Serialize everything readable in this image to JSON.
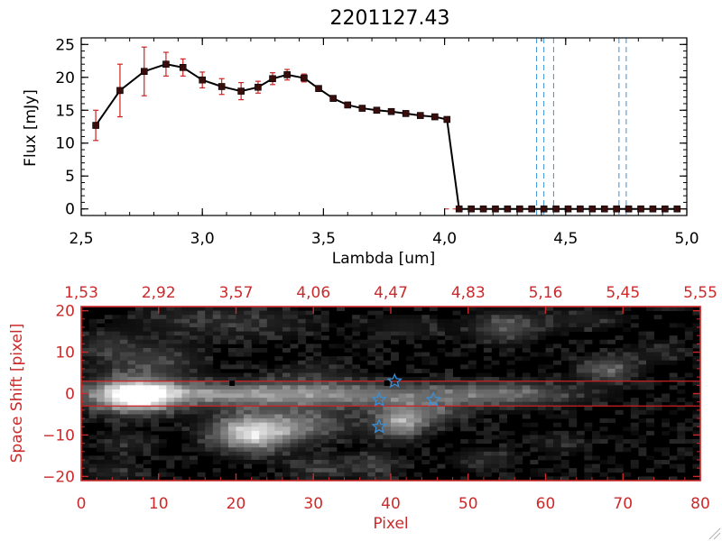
{
  "title": "2201127.43",
  "chart_data": [
    {
      "type": "line",
      "xlabel": "Lambda [um]",
      "ylabel": "Flux [mJy]",
      "xlim": [
        2.5,
        5.0
      ],
      "ylim": [
        -1,
        26
      ],
      "xticks": [
        "2,5",
        "3,0",
        "3,5",
        "4,0",
        "4,5",
        "5,0"
      ],
      "xtick_values": [
        2.5,
        3.0,
        3.5,
        4.0,
        4.5,
        5.0
      ],
      "yticks": [
        "0",
        "5",
        "10",
        "15",
        "20",
        "25"
      ],
      "ytick_values": [
        0,
        5,
        10,
        15,
        20,
        25
      ],
      "series": [
        {
          "color": "#000000",
          "marker_color": "#3a0d0d",
          "errorbar_color": "#cc2222",
          "x": [
            2.56,
            2.66,
            2.76,
            2.85,
            2.92,
            3.0,
            3.08,
            3.16,
            3.23,
            3.29,
            3.35,
            3.42,
            3.48,
            3.54,
            3.6,
            3.66,
            3.72,
            3.78,
            3.84,
            3.9,
            3.96,
            4.01,
            4.06,
            4.11,
            4.16,
            4.21,
            4.26,
            4.31,
            4.36,
            4.41,
            4.46,
            4.51,
            4.56,
            4.61,
            4.66,
            4.71,
            4.76,
            4.81,
            4.86,
            4.91,
            4.96
          ],
          "y": [
            12.7,
            18.0,
            20.9,
            22.0,
            21.5,
            19.6,
            18.6,
            17.9,
            18.5,
            19.8,
            20.4,
            19.9,
            18.3,
            16.8,
            15.8,
            15.3,
            15.0,
            14.8,
            14.5,
            14.2,
            14.0,
            13.6,
            0.0,
            0.0,
            0.0,
            0.0,
            0.0,
            0.0,
            0.0,
            0.0,
            0.0,
            0.0,
            0.0,
            0.0,
            0.0,
            0.0,
            0.0,
            0.0,
            0.0,
            0.0,
            0.0
          ],
          "yerr": [
            2.3,
            4.0,
            3.7,
            1.8,
            1.3,
            1.2,
            1.2,
            1.3,
            0.9,
            0.9,
            0.8,
            0.6,
            0.4,
            0.3,
            0.3,
            0.3,
            0.3,
            0.3,
            0.3,
            0.3,
            0.3,
            0.3,
            0,
            0,
            0,
            0,
            0,
            0,
            0,
            0,
            0,
            0,
            0,
            0,
            0,
            0,
            0,
            0,
            0,
            0,
            0
          ]
        }
      ],
      "vlines": {
        "color": "#3a8fd6",
        "x": [
          4.38,
          4.41,
          4.45,
          4.72,
          4.75
        ]
      },
      "hline": {
        "y": 0,
        "color": "#cc2222"
      }
    },
    {
      "type": "heatmap",
      "xlabel": "Pixel",
      "ylabel": "Space Shift [pixel]",
      "xlim": [
        0,
        80
      ],
      "ylim": [
        -21,
        21
      ],
      "xticks": [
        "0",
        "10",
        "20",
        "30",
        "40",
        "50",
        "60",
        "70",
        "80"
      ],
      "xtick_values": [
        0,
        10,
        20,
        30,
        40,
        50,
        60,
        70,
        80
      ],
      "yticks": [
        "−20",
        "−10",
        "0",
        "10",
        "20"
      ],
      "ytick_values": [
        -20,
        -10,
        0,
        10,
        20
      ],
      "top_axis_labels": [
        "1,53",
        "2,92",
        "3,57",
        "4,06",
        "4,47",
        "4,83",
        "5,16",
        "5,45",
        "5,55"
      ],
      "colormap": "gray",
      "axis_color": "#cc2a2a",
      "trace_lines": {
        "y": [
          3,
          -3
        ],
        "color": "#cc2222"
      },
      "blobs": [
        {
          "x": 7,
          "y": -0.5,
          "sx": 3.5,
          "sy": 2.8,
          "amp": 1.0
        },
        {
          "x": 18,
          "y": 0,
          "sx": 12,
          "sy": 2.0,
          "amp": 0.42
        },
        {
          "x": 38,
          "y": -0.5,
          "sx": 14,
          "sy": 2.2,
          "amp": 0.34
        },
        {
          "x": 55,
          "y": 0,
          "sx": 6,
          "sy": 2.0,
          "amp": 0.25
        },
        {
          "x": 22,
          "y": -9.5,
          "sx": 3.5,
          "sy": 3.0,
          "amp": 0.82
        },
        {
          "x": 29,
          "y": -7.5,
          "sx": 4.0,
          "sy": 2.6,
          "amp": 0.35
        },
        {
          "x": 41,
          "y": -7.0,
          "sx": 2.4,
          "sy": 2.6,
          "amp": 0.55
        },
        {
          "x": 45,
          "y": -5.0,
          "sx": 3.0,
          "sy": 2.0,
          "amp": 0.25
        },
        {
          "x": 9,
          "y": 8,
          "sx": 4.5,
          "sy": 3.0,
          "amp": 0.22
        },
        {
          "x": 3,
          "y": 12,
          "sx": 2.5,
          "sy": 2.2,
          "amp": 0.15
        },
        {
          "x": 14,
          "y": 18,
          "sx": 6.0,
          "sy": 3.0,
          "amp": 0.12
        },
        {
          "x": 24,
          "y": 17,
          "sx": 5.0,
          "sy": 3.0,
          "amp": 0.1
        },
        {
          "x": 30,
          "y": 5,
          "sx": 4.0,
          "sy": 2.0,
          "amp": 0.12
        },
        {
          "x": 42,
          "y": 16,
          "sx": 4.0,
          "sy": 2.5,
          "amp": 0.1
        },
        {
          "x": 55,
          "y": 16,
          "sx": 3.0,
          "sy": 2.5,
          "amp": 0.3
        },
        {
          "x": 65,
          "y": 18,
          "sx": 4.0,
          "sy": 2.0,
          "amp": 0.12
        },
        {
          "x": 68,
          "y": 6,
          "sx": 2.6,
          "sy": 2.2,
          "amp": 0.33
        },
        {
          "x": 75,
          "y": 10,
          "sx": 3.0,
          "sy": 2.0,
          "amp": 0.1
        },
        {
          "x": 31,
          "y": -18,
          "sx": 3.0,
          "sy": 2.0,
          "amp": 0.18
        },
        {
          "x": 38,
          "y": -17,
          "sx": 2.0,
          "sy": 2.0,
          "amp": 0.22
        },
        {
          "x": 52,
          "y": -16,
          "sx": 3.0,
          "sy": 2.0,
          "amp": 0.14
        },
        {
          "x": 62,
          "y": -12,
          "sx": 3.0,
          "sy": 2.0,
          "amp": 0.1
        },
        {
          "x": 6,
          "y": -12,
          "sx": 3.0,
          "sy": 2.0,
          "amp": 0.12
        },
        {
          "x": 4,
          "y": -19,
          "sx": 3.0,
          "sy": 2.0,
          "amp": 0.12
        }
      ],
      "stars": {
        "color": "#3a8fd6",
        "points": [
          {
            "x": 40.5,
            "y": 3.0
          },
          {
            "x": 38.5,
            "y": -1.5
          },
          {
            "x": 45.5,
            "y": -1.5
          },
          {
            "x": 38.5,
            "y": -8.0
          }
        ]
      },
      "markers": [
        {
          "x": 19.5,
          "y": 2.5
        },
        {
          "x": 39.5,
          "y": 2.5
        }
      ]
    }
  ]
}
